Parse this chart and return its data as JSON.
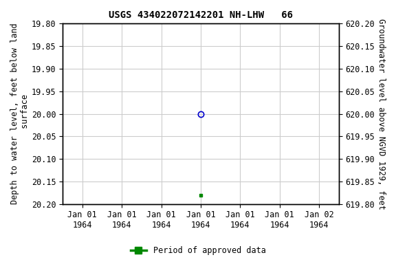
{
  "title": "USGS 434022072142201 NH-LHW   66",
  "ylabel_left": "Depth to water level, feet below land\n surface",
  "ylabel_right": "Groundwater level above NGVD 1929, feet",
  "ylim_left": [
    20.2,
    19.8
  ],
  "ylim_right": [
    619.8,
    620.2
  ],
  "yticks_left": [
    19.8,
    19.85,
    19.9,
    19.95,
    20.0,
    20.05,
    20.1,
    20.15,
    20.2
  ],
  "yticks_right": [
    619.8,
    619.85,
    619.9,
    619.95,
    620.0,
    620.05,
    620.1,
    620.15,
    620.2
  ],
  "ytick_labels_right": [
    "619.80",
    "619.85",
    "619.90",
    "619.95",
    "620.00",
    "620.05",
    "620.10",
    "620.15",
    "620.20"
  ],
  "data_point_blue_x": 3,
  "data_point_blue_y": 20.0,
  "data_point_green_x": 3,
  "data_point_green_y": 20.18,
  "xtick_positions": [
    0,
    1,
    2,
    3,
    4,
    5,
    6
  ],
  "xtick_labels": [
    "Jan 01\n1964",
    "Jan 01\n1964",
    "Jan 01\n1964",
    "Jan 01\n1964",
    "Jan 01\n1964",
    "Jan 01\n1964",
    "Jan 02\n1964"
  ],
  "xlim": [
    -0.5,
    6.5
  ],
  "blue_marker_color": "#0000cc",
  "green_marker_color": "#008800",
  "grid_color": "#cccccc",
  "bg_color": "#ffffff",
  "legend_label": "Period of approved data",
  "title_fontsize": 10,
  "axis_label_fontsize": 8.5,
  "tick_fontsize": 8.5
}
